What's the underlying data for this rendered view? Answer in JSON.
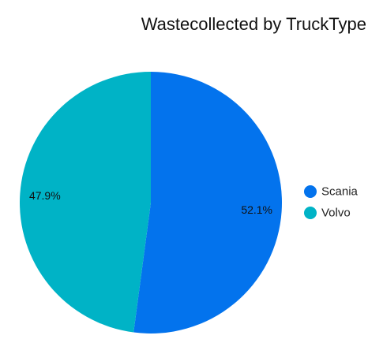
{
  "chart_data": {
    "type": "pie",
    "title": "Wastecollected by TruckType",
    "legend_position": "right",
    "slices": [
      {
        "label": "Scania",
        "value": 52.1,
        "display": "52.1%",
        "color": "#0373ed"
      },
      {
        "label": "Volvo",
        "value": 47.9,
        "display": "47.9%",
        "color": "#00b3c6"
      }
    ]
  }
}
